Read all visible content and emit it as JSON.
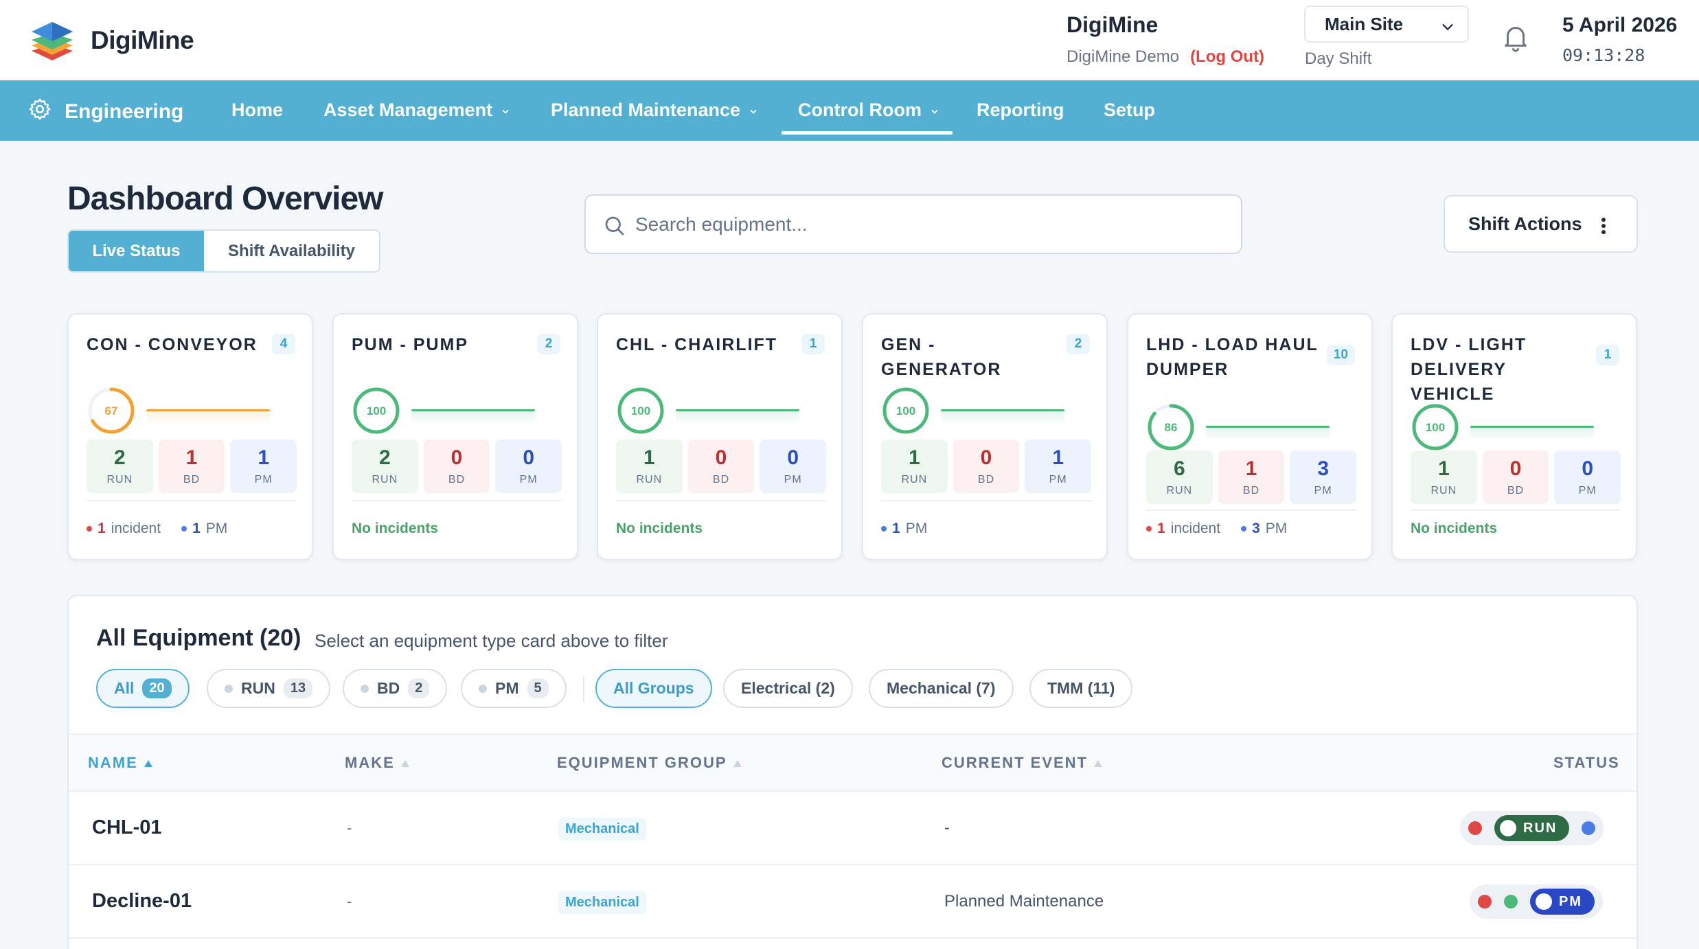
{
  "app": {
    "name": "DigiMine"
  },
  "header": {
    "org_name": "DigiMine",
    "org_sub": "DigiMine Demo",
    "logout_label": "(Log Out)",
    "site": "Main Site",
    "shift": "Day Shift",
    "date": "5 April 2026",
    "time": "09:13:28"
  },
  "nav": {
    "module": "Engineering",
    "items": [
      {
        "label": "Home",
        "dropdown": false
      },
      {
        "label": "Asset Management",
        "dropdown": true
      },
      {
        "label": "Planned Maintenance",
        "dropdown": true
      },
      {
        "label": "Control Room",
        "dropdown": true,
        "active": true
      },
      {
        "label": "Reporting",
        "dropdown": false
      },
      {
        "label": "Setup",
        "dropdown": false
      }
    ]
  },
  "page": {
    "title": "Dashboard Overview",
    "tabs": [
      "Live Status",
      "Shift Availability"
    ],
    "active_tab": "Live Status",
    "search_placeholder": "Search equipment...",
    "shift_actions_label": "Shift Actions"
  },
  "cards": [
    {
      "title": "CON - CONVEYOR",
      "count": "4",
      "gauge": "67",
      "gauge_pct": 67,
      "accent": "#f0a234",
      "run": "2",
      "bd": "1",
      "pm": "1",
      "foot_incident": "1",
      "foot_incident_label": "incident",
      "foot_pm": "1",
      "foot_pm_label": "PM"
    },
    {
      "title": "PUM - PUMP",
      "count": "2",
      "gauge": "100",
      "gauge_pct": 100,
      "accent": "#4cb87a",
      "run": "2",
      "bd": "0",
      "pm": "0",
      "foot_ok": "No incidents"
    },
    {
      "title": "CHL - CHAIRLIFT",
      "count": "1",
      "gauge": "100",
      "gauge_pct": 100,
      "accent": "#4cb87a",
      "run": "1",
      "bd": "0",
      "pm": "0",
      "foot_ok": "No incidents"
    },
    {
      "title": "GEN - GENERATOR",
      "count": "2",
      "gauge": "100",
      "gauge_pct": 100,
      "accent": "#4cb87a",
      "run": "1",
      "bd": "0",
      "pm": "1",
      "foot_pm": "1",
      "foot_pm_label": "PM"
    },
    {
      "title": "LHD - LOAD HAUL DUMPER",
      "count": "10",
      "gauge": "86",
      "gauge_pct": 86,
      "accent": "#4cb87a",
      "run": "6",
      "bd": "1",
      "pm": "3",
      "foot_incident": "1",
      "foot_incident_label": "incident",
      "foot_pm": "3",
      "foot_pm_label": "PM"
    },
    {
      "title": "LDV - LIGHT DELIVERY VEHICLE",
      "count": "1",
      "gauge": "100",
      "gauge_pct": 100,
      "accent": "#4cb87a",
      "run": "1",
      "bd": "0",
      "pm": "0",
      "foot_ok": "No incidents"
    }
  ],
  "stat_labels": {
    "run": "RUN",
    "bd": "BD",
    "pm": "PM"
  },
  "equipment": {
    "title": "All Equipment (20)",
    "subtitle": "Select an equipment type card above to filter",
    "status_filters": [
      {
        "label": "All",
        "count": "20",
        "selected": true
      },
      {
        "label": "RUN",
        "count": "13"
      },
      {
        "label": "BD",
        "count": "2"
      },
      {
        "label": "PM",
        "count": "5"
      }
    ],
    "group_filters": [
      {
        "label": "All Groups",
        "selected": true
      },
      {
        "label": "Electrical (2)"
      },
      {
        "label": "Mechanical (7)"
      },
      {
        "label": "TMM (11)"
      }
    ],
    "columns": [
      "NAME",
      "MAKE",
      "EQUIPMENT GROUP",
      "CURRENT EVENT",
      "STATUS"
    ],
    "rows": [
      {
        "name": "CHL-01",
        "make": "-",
        "group": "Mechanical",
        "event": "-",
        "status": "RUN"
      },
      {
        "name": "Decline-01",
        "make": "-",
        "group": "Mechanical",
        "event": "Planned Maintenance",
        "status": "PM"
      }
    ]
  }
}
